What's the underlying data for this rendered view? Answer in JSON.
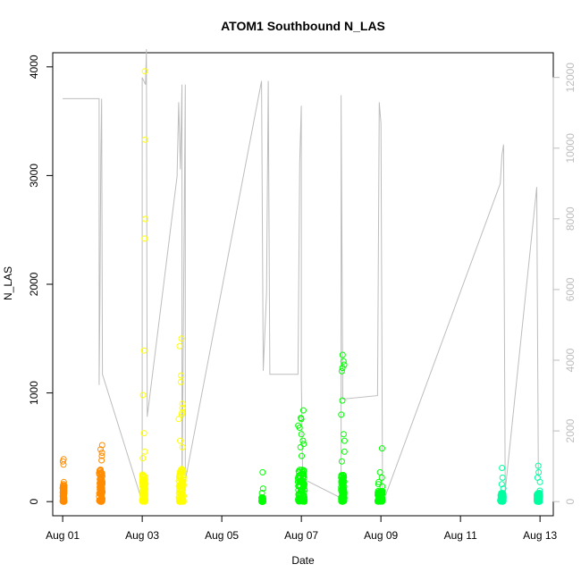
{
  "chart_data": {
    "type": "scatter",
    "title": "ATOM1 Southbound N_LAS",
    "xlabel": "Date",
    "ylabel": "N_LAS",
    "x_axis": {
      "type": "date",
      "range": [
        "2021-07-31T18:00",
        "2021-08-13T08:00"
      ],
      "ticks": [
        {
          "label": "Aug 01",
          "date": "2021-08-01"
        },
        {
          "label": "Aug 03",
          "date": "2021-08-03"
        },
        {
          "label": "Aug 05",
          "date": "2021-08-05"
        },
        {
          "label": "Aug 07",
          "date": "2021-08-07"
        },
        {
          "label": "Aug 09",
          "date": "2021-08-09"
        },
        {
          "label": "Aug 11",
          "date": "2021-08-11"
        },
        {
          "label": "Aug 13",
          "date": "2021-08-13"
        }
      ]
    },
    "y_axis_left": {
      "range": [
        -130,
        4130
      ],
      "ticks": [
        "0",
        "1000",
        "2000",
        "3000",
        "4000"
      ]
    },
    "y_axis_right": {
      "range": [
        -400,
        12700
      ],
      "ticks": [
        "0",
        "2000",
        "4000",
        "6000",
        "8000",
        "10000",
        "12000"
      ],
      "color": "#bdbdbd"
    },
    "grid": false,
    "legend": "none",
    "series": [
      {
        "color": "#ff8c00",
        "clusters": [
          {
            "date": "2021-08-01T00:00",
            "spread_hours": 1,
            "top": 390,
            "mid": [
              340,
              370,
              180,
              160
            ],
            "dense": 150
          },
          {
            "date": "2021-08-01T22:00",
            "spread_hours": 2,
            "top": 520,
            "mid": [
              480,
              450,
              420,
              380
            ],
            "dense": 300
          }
        ]
      },
      {
        "color": "#ffff00",
        "clusters": [
          {
            "date": "2021-08-03T00:00",
            "spread_hours": 2,
            "top": 3960,
            "mid": [
              3330,
              2600,
              2420,
              1390,
              980,
              630,
              460,
              400
            ],
            "dense": 250
          },
          {
            "date": "2021-08-03T22:00",
            "spread_hours": 3,
            "top": 1500,
            "mid": [
              1430,
              1160,
              1100,
              900,
              860,
              820,
              800,
              760,
              560,
              500
            ],
            "dense": 300
          }
        ]
      },
      {
        "color": "#00ff00",
        "clusters": [
          {
            "date": "2021-08-06T00:00",
            "spread_hours": 1,
            "top": 270,
            "mid": [
              120,
              80
            ],
            "dense": 40
          },
          {
            "date": "2021-08-06T22:00",
            "spread_hours": 4,
            "top": 840,
            "mid": [
              770,
              760,
              700,
              680,
              620,
              560,
              530,
              500,
              420
            ],
            "dense": 300
          },
          {
            "date": "2021-08-08T00:00",
            "spread_hours": 2,
            "top": 1350,
            "mid": [
              1290,
              1260,
              1230,
              1200,
              930,
              800,
              620,
              560,
              460,
              370
            ],
            "dense": 250
          },
          {
            "date": "2021-08-08T22:00",
            "spread_hours": 3,
            "top": 490,
            "mid": [
              270,
              220,
              180,
              160,
              140
            ],
            "dense": 100
          }
        ]
      },
      {
        "color": "#00ffa0",
        "clusters": [
          {
            "date": "2021-08-12T00:00",
            "spread_hours": 2,
            "top": 310,
            "mid": [
              220,
              160,
              120
            ],
            "dense": 80
          },
          {
            "date": "2021-08-12T22:00",
            "spread_hours": 2,
            "top": 330,
            "mid": [
              270,
              220,
              180,
              100
            ],
            "dense": 80
          }
        ]
      }
    ],
    "secondary_line": {
      "axis": "right",
      "color": "#bdbdbd",
      "points": [
        [
          "2021-08-01T00:00",
          11400
        ],
        [
          "2021-08-01T22:00",
          11400
        ],
        [
          "2021-08-01T22:00",
          3300
        ],
        [
          "2021-08-01T22:30",
          5700
        ],
        [
          "2021-08-01T23:00",
          9800
        ],
        [
          "2021-08-01T23:30",
          11400
        ],
        [
          "2021-08-02T00:00",
          3600
        ],
        [
          "2021-08-03T00:00",
          0
        ],
        [
          "2021-08-03T00:00",
          12000
        ],
        [
          "2021-08-03T02:00",
          11800
        ],
        [
          "2021-08-03T02:30",
          12800
        ],
        [
          "2021-08-03T03:00",
          2400
        ],
        [
          "2021-08-03T21:00",
          9200
        ],
        [
          "2021-08-03T22:00",
          11300
        ],
        [
          "2021-08-03T23:00",
          9400
        ],
        [
          "2021-08-04T00:00",
          11800
        ],
        [
          "2021-08-04T00:00",
          0
        ],
        [
          "2021-08-04T02:00",
          11800
        ],
        [
          "2021-08-04T02:00",
          600
        ],
        [
          "2021-08-06T00:00",
          11900
        ],
        [
          "2021-08-06T01:00",
          3700
        ],
        [
          "2021-08-06T03:00",
          5900
        ],
        [
          "2021-08-06T04:00",
          11900
        ],
        [
          "2021-08-06T05:00",
          3600
        ],
        [
          "2021-08-06T22:00",
          3600
        ],
        [
          "2021-08-06T23:00",
          9600
        ],
        [
          "2021-08-07T00:00",
          11200
        ],
        [
          "2021-08-07T00:00",
          3500
        ],
        [
          "2021-08-07T01:00",
          0
        ],
        [
          "2021-08-07T03:00",
          600
        ],
        [
          "2021-08-08T00:00",
          100
        ],
        [
          "2021-08-08T00:00",
          11500
        ],
        [
          "2021-08-08T01:00",
          2900
        ],
        [
          "2021-08-08T22:00",
          3000
        ],
        [
          "2021-08-08T23:00",
          11300
        ],
        [
          "2021-08-09T00:00",
          10700
        ],
        [
          "2021-08-09T01:00",
          100
        ],
        [
          "2021-08-09T03:00",
          200
        ],
        [
          "2021-08-12T00:00",
          9000
        ],
        [
          "2021-08-12T01:00",
          9800
        ],
        [
          "2021-08-12T02:00",
          10100
        ],
        [
          "2021-08-12T03:00",
          300
        ],
        [
          "2021-08-12T22:00",
          8900
        ],
        [
          "2021-08-12T23:00",
          700
        ]
      ]
    }
  }
}
